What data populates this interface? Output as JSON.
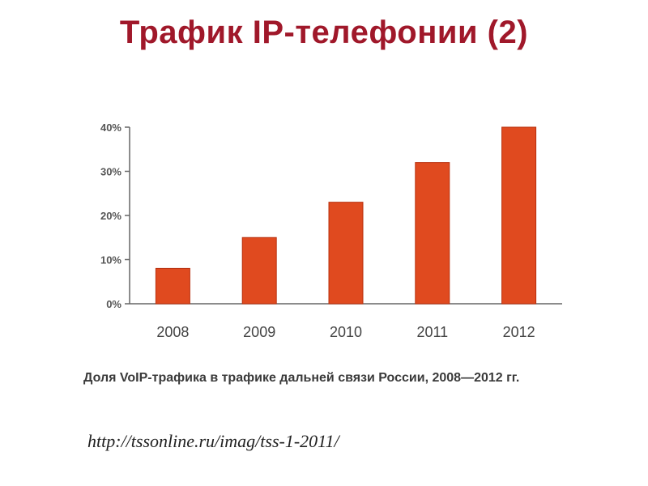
{
  "slide": {
    "title": "Трафик IP-телефонии (2)",
    "caption": "Доля VoIP-трафика в трафике дальней связи России, 2008—2012 гг.",
    "source": "http://tssonline.ru/imag/tss-1-2011/"
  },
  "colors": {
    "title": "#a0182a",
    "bar_fill": "#e04a1f",
    "bar_stroke": "#b8300e",
    "axis": "#666666"
  },
  "chart_data": {
    "type": "bar",
    "categories": [
      "2008",
      "2009",
      "2010",
      "2011",
      "2012"
    ],
    "values": [
      8,
      15,
      23,
      32,
      40
    ],
    "unit": "%",
    "yticks": [
      "0%",
      "10%",
      "20%",
      "30%",
      "40%"
    ],
    "ytick_values": [
      0,
      10,
      20,
      30,
      40
    ],
    "ylim": [
      0,
      40
    ],
    "grid": false,
    "legend": "none"
  }
}
